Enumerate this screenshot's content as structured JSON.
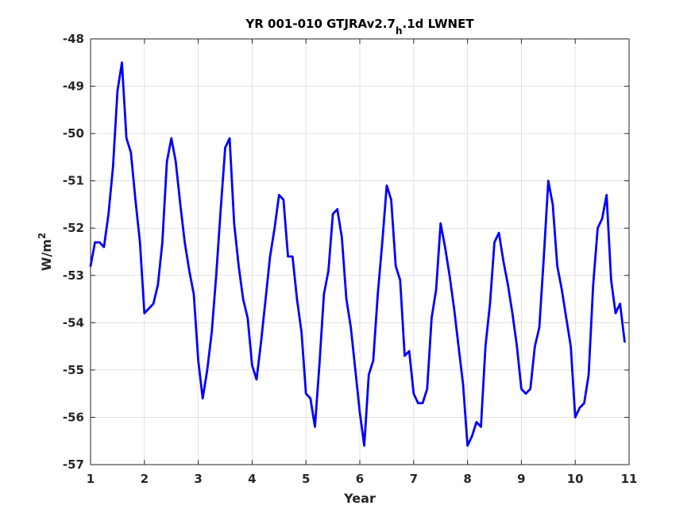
{
  "chart_data": {
    "type": "line",
    "title": {
      "main": "YR 001-010 GTJRAv2.7",
      "subscript": "h",
      "suffix": ".1d LWNET"
    },
    "xlabel": "Year",
    "ylabel": {
      "base": "W/m",
      "superscript": "2"
    },
    "xlim": [
      1,
      11
    ],
    "ylim": [
      -57,
      -48
    ],
    "xticks": [
      1,
      2,
      3,
      4,
      5,
      6,
      7,
      8,
      9,
      10,
      11
    ],
    "xtick_labels": [
      "1",
      "2",
      "3",
      "4",
      "5",
      "6",
      "7",
      "8",
      "9",
      "10",
      "11"
    ],
    "yticks": [
      -57,
      -56,
      -55,
      -54,
      -53,
      -52,
      -51,
      -50,
      -49,
      -48
    ],
    "ytick_labels": [
      "-57",
      "-56",
      "-55",
      "-54",
      "-53",
      "-52",
      "-51",
      "-50",
      "-49",
      "-48"
    ],
    "grid": true,
    "series": [
      {
        "color": "#0000ff",
        "x": [
          1.0,
          1.083,
          1.167,
          1.25,
          1.333,
          1.417,
          1.5,
          1.583,
          1.667,
          1.75,
          1.833,
          1.917,
          2.0,
          2.083,
          2.167,
          2.25,
          2.333,
          2.417,
          2.5,
          2.583,
          2.667,
          2.75,
          2.833,
          2.917,
          3.0,
          3.083,
          3.167,
          3.25,
          3.333,
          3.417,
          3.5,
          3.583,
          3.667,
          3.75,
          3.833,
          3.917,
          4.0,
          4.083,
          4.167,
          4.25,
          4.333,
          4.417,
          4.5,
          4.583,
          4.667,
          4.75,
          4.833,
          4.917,
          5.0,
          5.083,
          5.167,
          5.25,
          5.333,
          5.417,
          5.5,
          5.583,
          5.667,
          5.75,
          5.833,
          5.917,
          6.0,
          6.083,
          6.167,
          6.25,
          6.333,
          6.417,
          6.5,
          6.583,
          6.667,
          6.75,
          6.833,
          6.917,
          7.0,
          7.083,
          7.167,
          7.25,
          7.333,
          7.417,
          7.5,
          7.583,
          7.667,
          7.75,
          7.833,
          7.917,
          8.0,
          8.083,
          8.167,
          8.25,
          8.333,
          8.417,
          8.5,
          8.583,
          8.667,
          8.75,
          8.833,
          8.917,
          9.0,
          9.083,
          9.167,
          9.25,
          9.333,
          9.417,
          9.5,
          9.583,
          9.667,
          9.75,
          9.833,
          9.917,
          10.0,
          10.083,
          10.167,
          10.25,
          10.333,
          10.417,
          10.5,
          10.583,
          10.667,
          10.75,
          10.833,
          10.917
        ],
        "y": [
          -52.8,
          -52.3,
          -52.3,
          -52.4,
          -51.7,
          -50.7,
          -49.1,
          -48.5,
          -50.1,
          -50.4,
          -51.4,
          -52.3,
          -53.8,
          -53.7,
          -53.6,
          -53.2,
          -52.3,
          -50.6,
          -50.1,
          -50.6,
          -51.5,
          -52.3,
          -52.9,
          -53.4,
          -54.8,
          -55.6,
          -55.0,
          -54.2,
          -53.0,
          -51.6,
          -50.3,
          -50.1,
          -51.9,
          -52.8,
          -53.5,
          -53.9,
          -54.9,
          -55.2,
          -54.4,
          -53.5,
          -52.6,
          -52.0,
          -51.3,
          -51.4,
          -52.6,
          -52.6,
          -53.5,
          -54.2,
          -55.5,
          -55.6,
          -56.2,
          -54.9,
          -53.4,
          -52.9,
          -51.7,
          -51.6,
          -52.2,
          -53.5,
          -54.1,
          -55.0,
          -55.9,
          -56.6,
          -55.1,
          -54.8,
          -53.4,
          -52.3,
          -51.1,
          -51.4,
          -52.8,
          -53.1,
          -54.7,
          -54.6,
          -55.5,
          -55.7,
          -55.7,
          -55.4,
          -53.9,
          -53.3,
          -51.9,
          -52.4,
          -53.0,
          -53.7,
          -54.5,
          -55.3,
          -56.6,
          -56.4,
          -56.1,
          -56.2,
          -54.5,
          -53.6,
          -52.3,
          -52.1,
          -52.7,
          -53.2,
          -53.8,
          -54.5,
          -55.4,
          -55.5,
          -55.4,
          -54.5,
          -54.1,
          -52.6,
          -51.0,
          -51.5,
          -52.8,
          -53.3,
          -53.9,
          -54.5,
          -56.0,
          -55.8,
          -55.7,
          -55.1,
          -53.2,
          -52.0,
          -51.8,
          -51.3,
          -53.1,
          -53.8,
          -53.6,
          -54.4
        ]
      }
    ]
  }
}
